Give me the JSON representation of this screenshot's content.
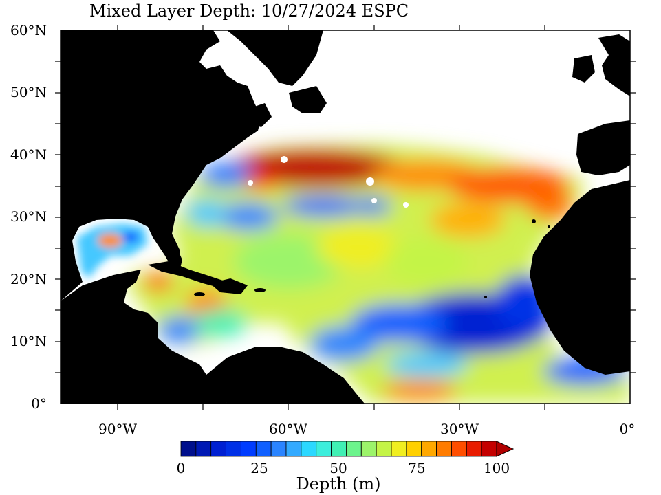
{
  "title": "Mixed Layer Depth: 10/27/2024 ESPC",
  "lat_labels": [
    "60°N",
    "50°N",
    "40°N",
    "30°N",
    "20°N",
    "10°N",
    "0°"
  ],
  "lon_labels": [
    "90°W",
    "60°W",
    "30°W",
    "0°"
  ],
  "colorbar": {
    "label": "Depth (m)",
    "ticks": [
      "0",
      "25",
      "50",
      "75",
      "100"
    ],
    "colors": [
      "#000f8c",
      "#0019b4",
      "#0020d2",
      "#0030e6",
      "#003cff",
      "#1060ff",
      "#2a84ff",
      "#33aaff",
      "#2cd8ff",
      "#3ceedc",
      "#40f0b4",
      "#6cf48c",
      "#9cf46a",
      "#c4f446",
      "#f0ee20",
      "#ffd000",
      "#ffa800",
      "#ff7c00",
      "#ff4e00",
      "#e81c00",
      "#c40000"
    ],
    "extend_color": "#b00000"
  },
  "colors": {
    "land": "#000000",
    "ocean_mask": "#ffffff"
  }
}
